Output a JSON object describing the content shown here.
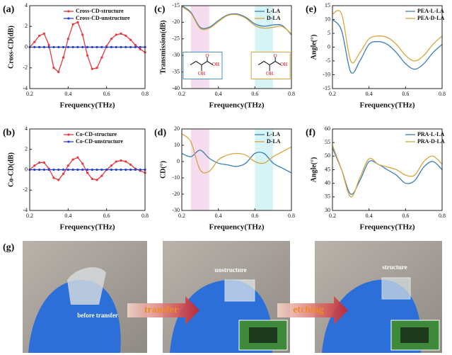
{
  "chart_data": [
    {
      "panel": "(a)",
      "type": "line",
      "x_label": "Frequency(THz)",
      "y_label": "Cross-CD(dB)",
      "xlim": [
        0.2,
        0.8
      ],
      "xticks": [
        0.2,
        0.4,
        0.6,
        0.8
      ],
      "ylim": [
        -4,
        4
      ],
      "yticks": [
        -4,
        -2,
        0,
        2,
        4
      ],
      "legend": "upper right",
      "x": [
        0.2,
        0.225,
        0.25,
        0.275,
        0.3,
        0.325,
        0.35,
        0.375,
        0.4,
        0.425,
        0.45,
        0.475,
        0.5,
        0.525,
        0.55,
        0.575,
        0.6,
        0.625,
        0.65,
        0.675,
        0.7,
        0.725,
        0.75,
        0.775,
        0.8
      ],
      "series": [
        {
          "name": "Cross-CD-structure",
          "color": "#e8383d",
          "marker": "circle",
          "values": [
            0,
            0.5,
            1.1,
            1.3,
            0.2,
            -2.0,
            -2.4,
            -1.0,
            0.8,
            2.2,
            2.4,
            1.2,
            -0.8,
            -2.1,
            -2.0,
            -1.0,
            0.1,
            0.8,
            1.2,
            1.3,
            1.1,
            0.7,
            0.2,
            -0.2,
            -0.5
          ]
        },
        {
          "name": "Cross-CD-unstructure",
          "color": "#2b3fd6",
          "marker": "circle",
          "values": [
            0,
            0,
            0,
            0,
            0,
            0,
            0,
            0,
            0,
            0,
            0,
            0,
            0,
            0,
            0,
            0,
            0,
            0,
            0,
            0,
            0,
            0,
            0,
            0,
            0
          ]
        }
      ]
    },
    {
      "panel": "(b)",
      "type": "line",
      "x_label": "Frequency(THz)",
      "y_label": "Co-CD(dB)",
      "xlim": [
        0.2,
        0.8
      ],
      "xticks": [
        0.2,
        0.4,
        0.6,
        0.8
      ],
      "ylim": [
        -4,
        4
      ],
      "yticks": [
        -4,
        -2,
        0,
        2,
        4
      ],
      "legend": "upper right",
      "x": [
        0.2,
        0.225,
        0.25,
        0.275,
        0.3,
        0.325,
        0.35,
        0.375,
        0.4,
        0.425,
        0.45,
        0.475,
        0.5,
        0.525,
        0.55,
        0.575,
        0.6,
        0.625,
        0.65,
        0.675,
        0.7,
        0.725,
        0.75,
        0.775,
        0.8
      ],
      "series": [
        {
          "name": "Co-CD-structure",
          "color": "#e8383d",
          "marker": "circle",
          "values": [
            0,
            0.4,
            0.7,
            0.7,
            0.1,
            -0.8,
            -1.0,
            -0.4,
            0.4,
            1.0,
            1.2,
            0.6,
            -0.3,
            -0.9,
            -1.0,
            -0.6,
            0,
            0.4,
            0.8,
            0.9,
            0.8,
            0.5,
            0.1,
            -0.1,
            -0.3
          ]
        },
        {
          "name": "Co-CD-unstructure",
          "color": "#2b3fd6",
          "marker": "circle",
          "values": [
            0,
            0,
            0,
            0,
            0,
            0,
            0,
            0,
            0,
            0,
            0,
            0,
            0,
            0,
            0,
            0,
            0,
            0,
            0,
            0,
            0,
            0,
            0,
            0,
            0
          ]
        }
      ]
    },
    {
      "panel": "(c)",
      "type": "line",
      "smooth": true,
      "x_label": "Frequency(THz)",
      "y_label": "Transmission(dB)",
      "xlim": [
        0.2,
        0.8
      ],
      "xticks": [
        0.2,
        0.4,
        0.6,
        0.8
      ],
      "ylim": [
        -40,
        -15
      ],
      "yticks": [
        -40,
        -35,
        -30,
        -25,
        -20,
        -15
      ],
      "legend": "upper right",
      "highlights": [
        {
          "xrange": [
            0.25,
            0.35
          ],
          "color": "#f5dcef"
        },
        {
          "xrange": [
            0.6,
            0.7
          ],
          "color": "#d6f3f6"
        }
      ],
      "insets": [
        {
          "labels": [
            "O",
            "OH",
            "OH"
          ],
          "border": "#4a90c8"
        },
        {
          "labels": [
            "O",
            "OH",
            "OH"
          ],
          "border": "#d9a441"
        }
      ],
      "x": [
        0.2,
        0.25,
        0.3,
        0.35,
        0.4,
        0.45,
        0.5,
        0.55,
        0.6,
        0.65,
        0.7,
        0.75,
        0.8
      ],
      "series": [
        {
          "name": "L-LA",
          "color": "#3a7fb8",
          "values": [
            -15,
            -17,
            -21.5,
            -21.5,
            -19.5,
            -17.8,
            -17.5,
            -18.5,
            -20.5,
            -21.2,
            -20.8,
            -21,
            -23.8
          ]
        },
        {
          "name": "D-LA",
          "color": "#d9a441",
          "values": [
            -15.3,
            -17.3,
            -21.8,
            -21.8,
            -19.8,
            -18,
            -17.7,
            -18.8,
            -21,
            -21.8,
            -21.5,
            -21.3,
            -23.5
          ]
        }
      ]
    },
    {
      "panel": "(d)",
      "type": "line",
      "smooth": true,
      "x_label": "Frequency(THz)",
      "y_label": "CD(°)",
      "xlim": [
        0.2,
        0.8
      ],
      "xticks": [
        0.2,
        0.4,
        0.6,
        0.8
      ],
      "ylim": [
        -30,
        20
      ],
      "yticks": [
        -30,
        -20,
        -10,
        0,
        10,
        20
      ],
      "legend": "upper right",
      "highlights": [
        {
          "xrange": [
            0.25,
            0.35
          ],
          "color": "#f5dcef"
        },
        {
          "xrange": [
            0.6,
            0.7
          ],
          "color": "#d6f3f6"
        }
      ],
      "x": [
        0.2,
        0.25,
        0.3,
        0.35,
        0.4,
        0.45,
        0.5,
        0.55,
        0.6,
        0.65,
        0.7,
        0.75,
        0.8
      ],
      "series": [
        {
          "name": "L-LA",
          "color": "#3a7fb8",
          "values": [
            5,
            3,
            7,
            2,
            -1,
            -2,
            -3,
            -1,
            5,
            5,
            -1,
            -4,
            -7
          ]
        },
        {
          "name": "D-LA",
          "color": "#d9a441",
          "values": [
            17,
            12,
            -5,
            -6,
            1,
            4,
            5,
            4,
            0,
            -1,
            3,
            6,
            9
          ]
        }
      ]
    },
    {
      "panel": "(e)",
      "type": "line",
      "smooth": true,
      "x_label": "Frequency(THz)",
      "y_label": "Angle(°)",
      "xlim": [
        0.2,
        0.8
      ],
      "xticks": [
        0.2,
        0.4,
        0.6,
        0.8
      ],
      "ylim": [
        -15,
        15
      ],
      "yticks": [
        -15,
        -10,
        -5,
        0,
        5,
        10,
        15
      ],
      "legend": "upper right",
      "x": [
        0.2,
        0.25,
        0.3,
        0.35,
        0.4,
        0.45,
        0.5,
        0.55,
        0.6,
        0.65,
        0.7,
        0.75,
        0.8
      ],
      "series": [
        {
          "name": "PEA-L-LA",
          "color": "#3a7fb8",
          "values": [
            10,
            6,
            -9,
            -5,
            1,
            2,
            1,
            -2,
            -6,
            -8,
            -6,
            -2,
            1
          ]
        },
        {
          "name": "PEA-D-LA",
          "color": "#d9a441",
          "values": [
            12,
            12,
            -5,
            -2,
            3,
            4,
            3.5,
            1,
            -3,
            -5,
            -3,
            1,
            4
          ]
        }
      ]
    },
    {
      "panel": "(f)",
      "type": "line",
      "smooth": true,
      "x_label": "Frequency(THz)",
      "y_label": "Angle(°)",
      "xlim": [
        0.2,
        0.8
      ],
      "xticks": [
        0.2,
        0.4,
        0.6,
        0.8
      ],
      "ylim": [
        30,
        60
      ],
      "yticks": [
        30,
        35,
        40,
        45,
        50,
        55,
        60
      ],
      "legend": "upper right",
      "x": [
        0.2,
        0.25,
        0.3,
        0.35,
        0.4,
        0.45,
        0.5,
        0.55,
        0.6,
        0.65,
        0.7,
        0.75,
        0.8
      ],
      "series": [
        {
          "name": "PRA-L-LA",
          "color": "#3a7fb8",
          "values": [
            53,
            45,
            36,
            41,
            48,
            47,
            45,
            43,
            40,
            41,
            46,
            48,
            45
          ]
        },
        {
          "name": "PRA-D-LA",
          "color": "#d9a441",
          "values": [
            54,
            45,
            35,
            42,
            49,
            47,
            46,
            45,
            43,
            43,
            48,
            50,
            47
          ]
        }
      ]
    }
  ],
  "photo_panel": {
    "label": "(g)",
    "captions": [
      "before transfer",
      "unstructure",
      "structure"
    ],
    "arrows": [
      "transfer",
      "etching"
    ]
  }
}
